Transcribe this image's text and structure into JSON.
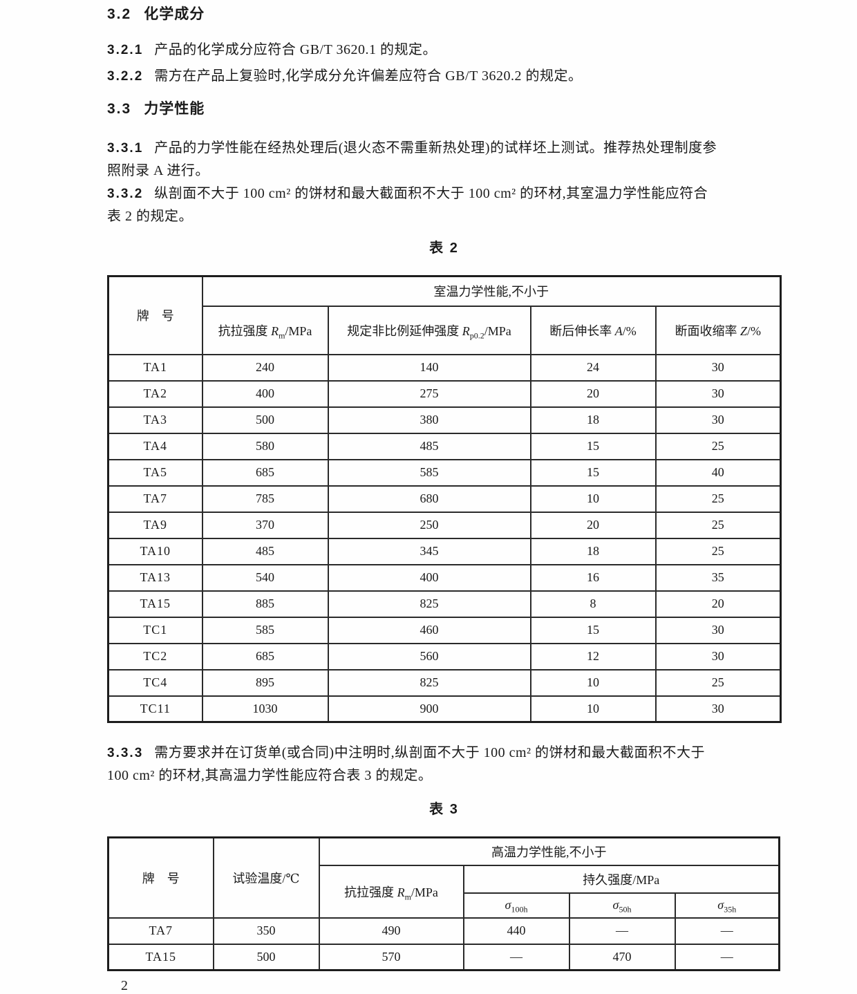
{
  "content": {
    "h32": {
      "num": "3.2",
      "text": "化学成分"
    },
    "p321": {
      "num": "3.2.1",
      "text": "产品的化学成分应符合 GB/T 3620.1 的规定。"
    },
    "p322": {
      "num": "3.2.2",
      "text": "需方在产品上复验时,化学成分允许偏差应符合 GB/T 3620.2 的规定。"
    },
    "h33": {
      "num": "3.3",
      "text": "力学性能"
    },
    "p331": {
      "num": "3.3.1",
      "line1": "产品的力学性能在经热处理后(退火态不需重新热处理)的试样坯上测试。推荐热处理制度参",
      "line2": "照附录 A 进行。"
    },
    "p332": {
      "num": "3.3.2",
      "line1": "纵剖面不大于 100 cm² 的饼材和最大截面积不大于 100 cm² 的环材,其室温力学性能应符合",
      "line2": "表 2 的规定。"
    },
    "p333": {
      "num": "3.3.3",
      "line1": "需方要求并在订货单(或合同)中注明时,纵剖面不大于 100 cm² 的饼材和最大截面积不大于",
      "line2": "100 cm² 的环材,其高温力学性能应符合表 3 的规定。"
    }
  },
  "table2": {
    "caption": "表 2",
    "header": {
      "grade": "牌　号",
      "group": "室温力学性能,不小于",
      "cols": [
        {
          "prefix": "抗拉强度 ",
          "sym": "R",
          "sub": "m",
          "suffix": "/MPa"
        },
        {
          "prefix": "规定非比例延伸强度 ",
          "sym": "R",
          "sub": "p0.2",
          "suffix": "/MPa"
        },
        {
          "prefix": "断后伸长率 ",
          "sym": "A",
          "sub": "",
          "suffix": "/%"
        },
        {
          "prefix": "断面收缩率 ",
          "sym": "Z",
          "sub": "",
          "suffix": "/%"
        }
      ]
    },
    "rows": [
      [
        "TA1",
        "240",
        "140",
        "24",
        "30"
      ],
      [
        "TA2",
        "400",
        "275",
        "20",
        "30"
      ],
      [
        "TA3",
        "500",
        "380",
        "18",
        "30"
      ],
      [
        "TA4",
        "580",
        "485",
        "15",
        "25"
      ],
      [
        "TA5",
        "685",
        "585",
        "15",
        "40"
      ],
      [
        "TA7",
        "785",
        "680",
        "10",
        "25"
      ],
      [
        "TA9",
        "370",
        "250",
        "20",
        "25"
      ],
      [
        "TA10",
        "485",
        "345",
        "18",
        "25"
      ],
      [
        "TA13",
        "540",
        "400",
        "16",
        "35"
      ],
      [
        "TA15",
        "885",
        "825",
        "8",
        "20"
      ],
      [
        "TC1",
        "585",
        "460",
        "15",
        "30"
      ],
      [
        "TC2",
        "685",
        "560",
        "12",
        "30"
      ],
      [
        "TC4",
        "895",
        "825",
        "10",
        "25"
      ],
      [
        "TC11",
        "1030",
        "900",
        "10",
        "30"
      ]
    ]
  },
  "table3": {
    "caption": "表 3",
    "header": {
      "grade": "牌　号",
      "temp": "试验温度/℃",
      "group": "高温力学性能,不小于",
      "tensile": {
        "prefix": "抗拉强度 ",
        "sym": "R",
        "sub": "m",
        "suffix": "/MPa"
      },
      "endurance": "持久强度/MPa",
      "sigmas": [
        {
          "sym": "σ",
          "sub": "100h"
        },
        {
          "sym": "σ",
          "sub": "50h"
        },
        {
          "sym": "σ",
          "sub": "35h"
        }
      ]
    },
    "rows": [
      [
        "TA7",
        "350",
        "490",
        "440",
        "—",
        "—"
      ],
      [
        "TA15",
        "500",
        "570",
        "—",
        "470",
        "—"
      ]
    ]
  },
  "page": {
    "number": "2"
  }
}
